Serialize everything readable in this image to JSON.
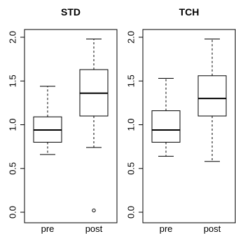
{
  "chart_data": [
    {
      "type": "boxplot",
      "title": "STD",
      "ylim": [
        0.0,
        2.0
      ],
      "yticks": [
        "0.0",
        "0.5",
        "1.0",
        "1.5",
        "2.0"
      ],
      "categories": [
        "pre",
        "post"
      ],
      "boxes": [
        {
          "label": "pre",
          "whisker_low": 0.66,
          "q1": 0.8,
          "median": 0.94,
          "q3": 1.09,
          "whisker_high": 1.44,
          "outliers": []
        },
        {
          "label": "post",
          "whisker_low": 0.74,
          "q1": 1.1,
          "median": 1.36,
          "q3": 1.63,
          "whisker_high": 1.98,
          "outliers": [
            0.02
          ]
        }
      ]
    },
    {
      "type": "boxplot",
      "title": "TCH",
      "ylim": [
        0.0,
        2.0
      ],
      "yticks": [
        "0.0",
        "0.5",
        "1.0",
        "1.5",
        "2.0"
      ],
      "categories": [
        "pre",
        "post"
      ],
      "boxes": [
        {
          "label": "pre",
          "whisker_low": 0.64,
          "q1": 0.8,
          "median": 0.94,
          "q3": 1.16,
          "whisker_high": 1.53,
          "outliers": []
        },
        {
          "label": "post",
          "whisker_low": 0.58,
          "q1": 1.1,
          "median": 1.3,
          "q3": 1.56,
          "whisker_high": 1.98,
          "outliers": []
        }
      ]
    }
  ]
}
